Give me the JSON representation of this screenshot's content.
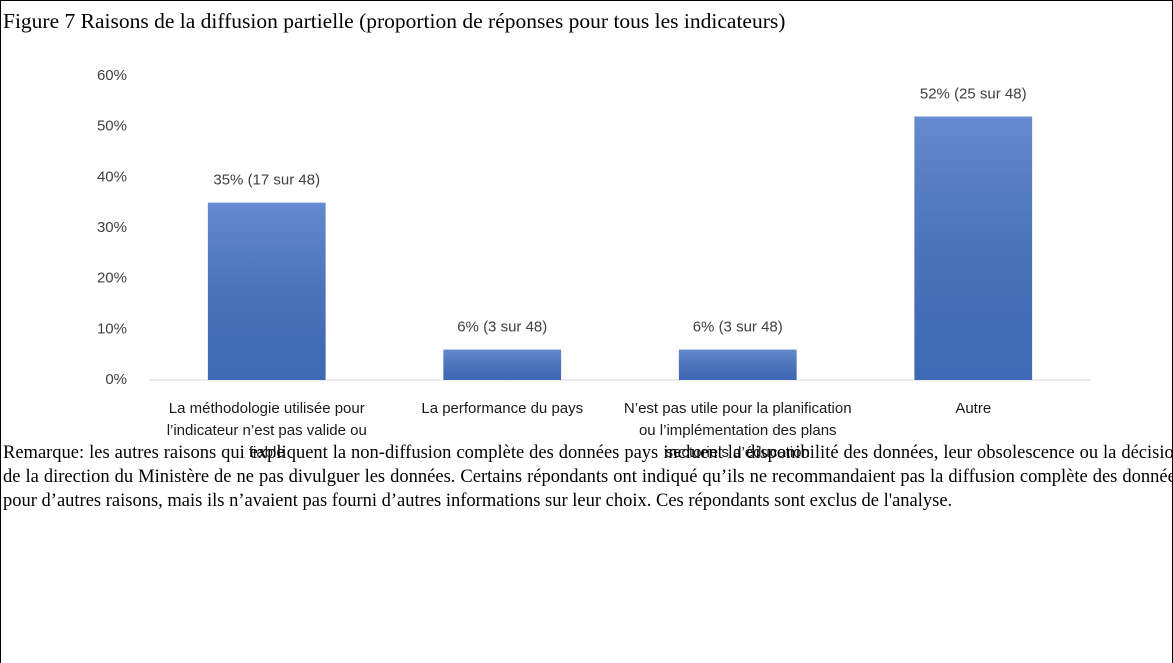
{
  "chart_data": {
    "type": "bar",
    "title": "Figure 7 Raisons de la diffusion partielle (proportion de réponses pour tous les indicateurs)",
    "categories": [
      "La méthodologie utilisée pour l’indicateur n’est pas valide ou fiable",
      "La performance du pays",
      "N’est pas utile pour la planification ou l’implémentation des plans sectoriels d’éducation",
      "Autre"
    ],
    "values": [
      35,
      6,
      6,
      52
    ],
    "value_labels": [
      "35% (17 sur  48)",
      "6% (3 sur 48)",
      "6% (3 sur 48)",
      "52% (25 sur 48)"
    ],
    "color": "#4472c4",
    "ylim": [
      0,
      60
    ],
    "yticks": [
      {
        "value": 0,
        "label": "0%"
      },
      {
        "value": 10,
        "label": "10%"
      },
      {
        "value": 20,
        "label": "20%"
      },
      {
        "value": 30,
        "label": "30%"
      },
      {
        "value": 40,
        "label": "40%"
      },
      {
        "value": 50,
        "label": "50%"
      },
      {
        "value": 60,
        "label": "60%"
      }
    ],
    "grid": false,
    "note": "Remarque: les autres raisons qui expliquent la non-diffusion complète des données pays incluent la disponibilité des données, leur obsolescence ou la décision de la direction du Ministère de ne pas divulguer les données. Certains répondants ont indiqué qu’ils ne recommandaient pas la diffusion complète des données pour d’autres raisons, mais ils n’avaient pas fourni d’autres informations sur leur choix. Ces répondants sont exclus de l'analyse."
  }
}
